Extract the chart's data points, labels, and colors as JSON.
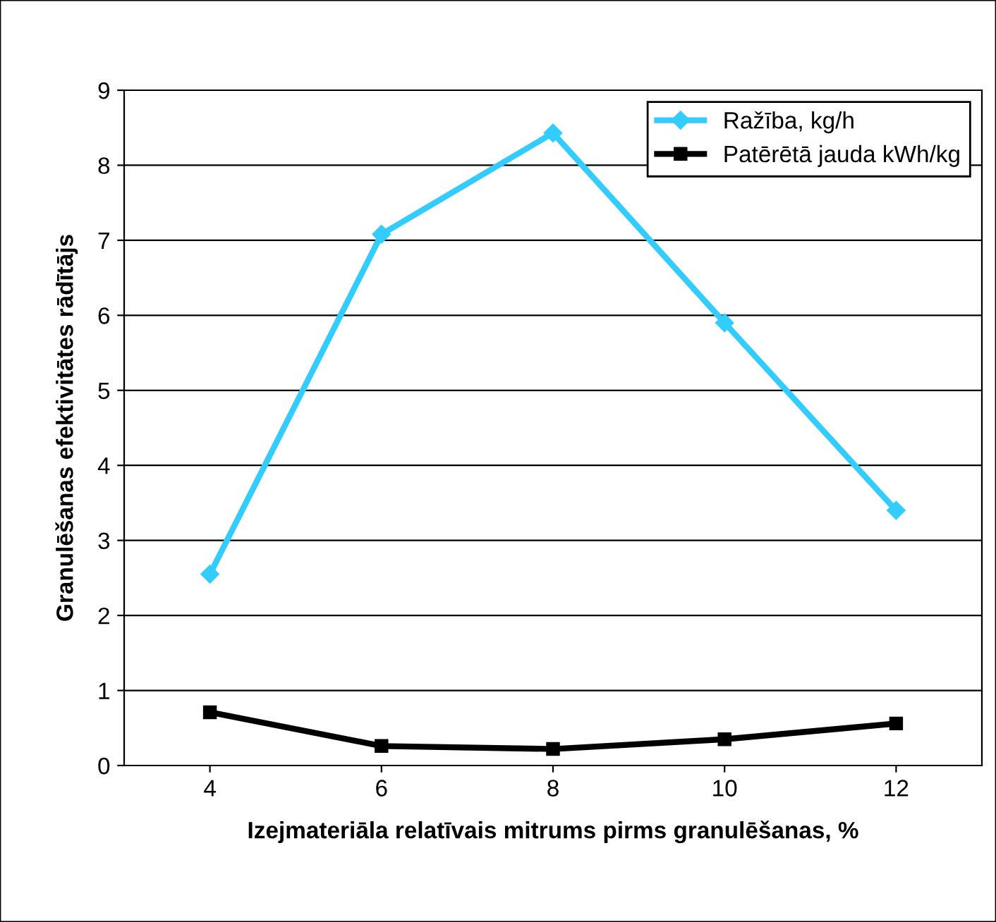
{
  "chart_data": {
    "type": "line",
    "xlabel": "Izejmateriāla relatīvais mitrums pirms granulēšanas, %",
    "ylabel": "Granulēšanas efektivitātes rādītājs",
    "categories": [
      "4",
      "6",
      "8",
      "10",
      "12"
    ],
    "series": [
      {
        "name": "Ražība, kg/h",
        "color": "#33ccff",
        "marker": "diamond",
        "values": [
          2.55,
          7.08,
          8.43,
          5.9,
          3.4
        ]
      },
      {
        "name": "Patērētā jauda kWh/kg",
        "color": "#000000",
        "marker": "square",
        "values": [
          0.71,
          0.26,
          0.22,
          0.35,
          0.56
        ]
      }
    ],
    "ylim": [
      0,
      9
    ],
    "yticks": [
      0,
      1,
      2,
      3,
      4,
      5,
      6,
      7,
      8,
      9
    ],
    "grid": "y",
    "legend": "top right",
    "line_style": "solid"
  }
}
